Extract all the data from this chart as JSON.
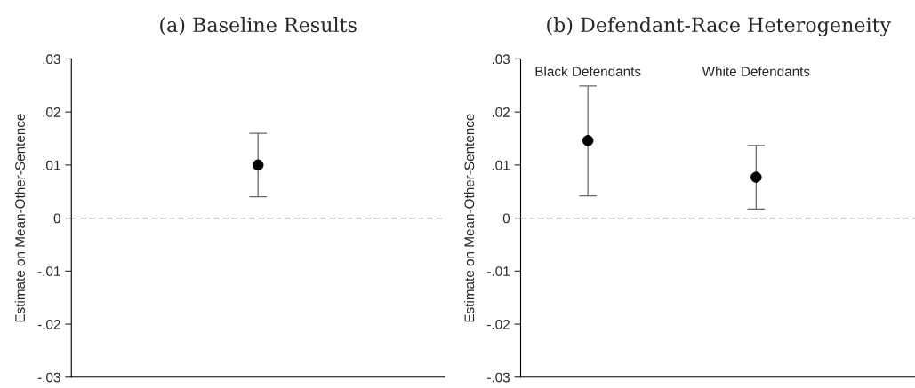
{
  "chart_data": [
    {
      "type": "scatter",
      "title": "(a) Baseline Results",
      "ylabel": "Estimate on Mean-Other-Sentence",
      "categories": [
        null
      ],
      "series": [
        {
          "color": "#000000",
          "values": [
            0.01
          ],
          "errors": [
            [
              0.004,
              0.016
            ]
          ]
        }
      ],
      "ylim": [
        -0.03,
        0.03
      ],
      "yticks": [
        {
          "value": -0.03,
          "label": "-.03"
        },
        {
          "value": -0.02,
          "label": "-.02"
        },
        {
          "value": -0.01,
          "label": "-.01"
        },
        0,
        {
          "value": 0.01,
          "label": ".01"
        },
        {
          "value": 0.02,
          "label": ".02"
        },
        {
          "value": 0.03,
          "label": ".03"
        }
      ],
      "ref_lines": [
        {
          "axis": "y",
          "value": 0,
          "color": "#808080",
          "line_style": "dashed"
        }
      ],
      "marker": "circle",
      "grid": false,
      "legend": false
    },
    {
      "type": "scatter",
      "title": "(b) Defendant-Race Heterogeneity",
      "ylabel": "Estimate on Mean-Other-Sentence",
      "categories": [
        "Black Defendants",
        "White Defendants"
      ],
      "series": [
        {
          "color": "#000000",
          "values": [
            0.0146,
            0.0077
          ],
          "errors": [
            [
              0.0042,
              0.0249
            ],
            [
              0.0017,
              0.0137
            ]
          ]
        }
      ],
      "ylim": [
        -0.03,
        0.03
      ],
      "yticks": [
        {
          "value": -0.03,
          "label": "-.03"
        },
        {
          "value": -0.02,
          "label": "-.02"
        },
        {
          "value": -0.01,
          "label": "-.01"
        },
        0,
        {
          "value": 0.01,
          "label": ".01"
        },
        {
          "value": 0.02,
          "label": ".02"
        },
        {
          "value": 0.03,
          "label": ".03"
        }
      ],
      "ref_lines": [
        {
          "axis": "y",
          "value": 0,
          "color": "#808080",
          "line_style": "dashed"
        }
      ],
      "marker": "circle",
      "grid": false,
      "legend": false
    }
  ]
}
